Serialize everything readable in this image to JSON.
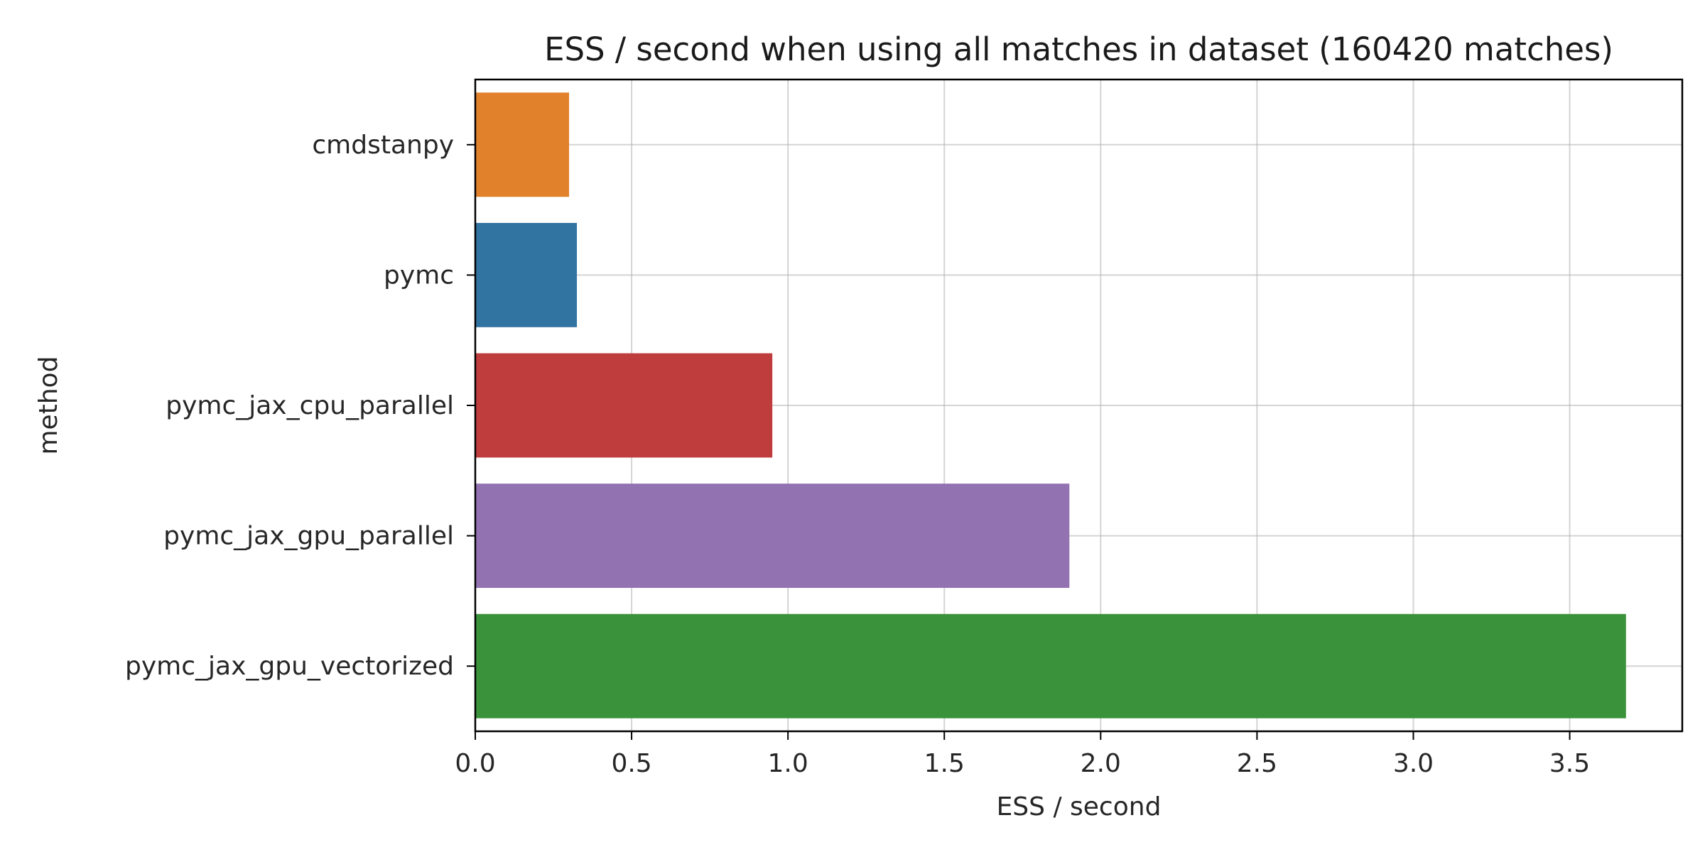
{
  "chart_data": {
    "type": "bar",
    "orientation": "horizontal",
    "title": "ESS / second when using all matches in dataset (160420 matches)",
    "xlabel": "ESS / second",
    "ylabel": "method",
    "categories": [
      "cmdstanpy",
      "pymc",
      "pymc_jax_cpu_parallel",
      "pymc_jax_gpu_parallel",
      "pymc_jax_gpu_vectorized"
    ],
    "values": [
      0.3,
      0.325,
      0.95,
      1.9,
      3.68
    ],
    "colors": [
      "#e1812c",
      "#3274a1",
      "#c03d3e",
      "#9372b2",
      "#3a923a"
    ],
    "xlim": [
      0,
      3.86
    ],
    "xticks": [
      0.0,
      0.5,
      1.0,
      1.5,
      2.0,
      2.5,
      3.0,
      3.5
    ],
    "xtick_labels": [
      "0.0",
      "0.5",
      "1.0",
      "1.5",
      "2.0",
      "2.5",
      "3.0",
      "3.5"
    ],
    "grid": true
  }
}
